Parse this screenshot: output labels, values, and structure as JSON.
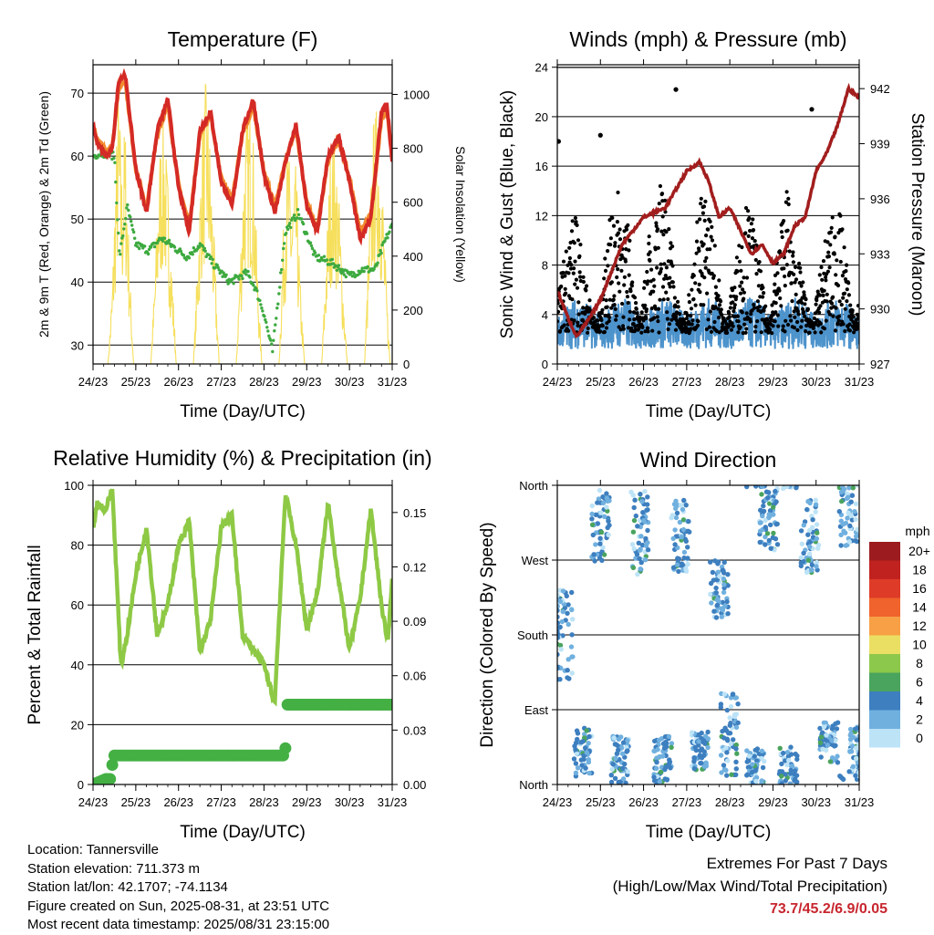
{
  "x_ticks": [
    "24/23",
    "25/23",
    "26/23",
    "27/23",
    "28/23",
    "29/23",
    "30/23",
    "31/23"
  ],
  "colors": {
    "t2m": "#d42a25",
    "t9m": "#f28a2e",
    "dewpoint": "#3daa3f",
    "solar": "#f6df5c",
    "wind": "#4d93cc",
    "gust": "#000000",
    "pressure": "#a21d1d",
    "rh": "#8ec945",
    "precip": "#44b044"
  },
  "chart_data": [
    {
      "type": "line",
      "id": "temperature",
      "title": "Temperature (F)",
      "xlabel": "Time (Day/UTC)",
      "ylabel": "2m & 9m T (Red, Orange) & 2m Td (Green)",
      "ylabel2": "Solar Insolation (Yellow)",
      "x_ticks": [
        "24/23",
        "25/23",
        "26/23",
        "27/23",
        "28/23",
        "29/23",
        "30/23",
        "31/23"
      ],
      "ylim": [
        27,
        74.5
      ],
      "yticks": [
        30,
        40,
        50,
        60,
        70
      ],
      "y2lim": [
        0,
        1110
      ],
      "y2ticks": [
        0,
        200,
        400,
        600,
        800,
        1000
      ],
      "grid": true,
      "series": [
        {
          "key": "t2m",
          "axis": "left",
          "x": [
            0,
            0.1,
            0.3,
            0.45,
            0.6,
            0.75,
            1.0,
            1.25,
            1.5,
            1.75,
            2.0,
            2.25,
            2.5,
            2.75,
            3.0,
            3.25,
            3.5,
            3.75,
            4.0,
            4.25,
            4.5,
            4.75,
            5.0,
            5.25,
            5.5,
            5.75,
            6.0,
            6.25,
            6.5,
            6.75,
            6.88,
            7.0
          ],
          "values": [
            65,
            62,
            60,
            61,
            72,
            73,
            58,
            51,
            64,
            69,
            55,
            48,
            64,
            67,
            56,
            52,
            64,
            69,
            57,
            51,
            59,
            65,
            52,
            48,
            60,
            63,
            56,
            47,
            50,
            67,
            68,
            59
          ]
        },
        {
          "key": "t9m",
          "axis": "left",
          "x": [
            0,
            0.1,
            0.3,
            0.45,
            0.6,
            0.75,
            1.0,
            1.25,
            1.5,
            1.75,
            2.0,
            2.25,
            2.5,
            2.75,
            3.0,
            3.25,
            3.5,
            3.75,
            4.0,
            4.25,
            4.5,
            4.75,
            5.0,
            5.25,
            5.5,
            5.75,
            6.0,
            6.25,
            6.5,
            6.75,
            6.88,
            7.0
          ],
          "values": [
            65,
            62.5,
            61,
            61.5,
            71,
            72,
            58,
            51.5,
            63.5,
            68,
            55.5,
            49,
            63.5,
            66.5,
            56.5,
            53,
            63.5,
            68,
            57.5,
            52,
            59,
            64.5,
            52.5,
            48.5,
            59.5,
            62.5,
            56.5,
            48,
            50.5,
            66,
            67,
            59.5
          ]
        },
        {
          "key": "dewpoint",
          "axis": "left",
          "x": [
            0,
            0.2,
            0.5,
            0.62,
            0.8,
            1.0,
            1.3,
            1.6,
            1.9,
            2.2,
            2.5,
            2.8,
            3.2,
            3.6,
            3.8,
            4.0,
            4.2,
            4.5,
            4.8,
            5.2,
            5.6,
            6.0,
            6.3,
            6.6,
            6.8,
            7.0
          ],
          "values": [
            60,
            60.5,
            60,
            44,
            52,
            46,
            45,
            47,
            45.5,
            44,
            46,
            43,
            40,
            41.5,
            39,
            35,
            29,
            48,
            51,
            44,
            43,
            41,
            42,
            42,
            46,
            49
          ]
        },
        {
          "key": "solar",
          "axis": "right",
          "x": [
            0.35,
            0.45,
            0.55,
            0.6,
            0.68,
            0.75,
            0.85,
            0.95,
            1.35,
            1.45,
            1.55,
            1.65,
            1.75,
            1.85,
            1.95,
            2.35,
            2.45,
            2.55,
            2.65,
            2.72,
            2.85,
            2.95,
            3.35,
            3.45,
            3.55,
            3.65,
            3.75,
            3.85,
            3.95,
            4.35,
            4.45,
            4.55,
            4.65,
            4.75,
            4.85,
            4.95,
            5.35,
            5.45,
            5.55,
            5.65,
            5.75,
            5.85,
            5.95,
            6.35,
            6.45,
            6.55,
            6.65,
            6.75,
            6.85,
            6.95
          ],
          "values": [
            0,
            300,
            850,
            1050,
            700,
            950,
            400,
            0,
            0,
            350,
            800,
            950,
            700,
            350,
            0,
            0,
            420,
            900,
            1080,
            900,
            400,
            0,
            0,
            450,
            850,
            1000,
            850,
            350,
            0,
            0,
            500,
            850,
            650,
            750,
            300,
            0,
            0,
            400,
            800,
            850,
            650,
            300,
            0,
            0,
            450,
            900,
            980,
            800,
            350,
            0
          ]
        }
      ]
    },
    {
      "type": "scatter",
      "id": "winds",
      "title": "Winds (mph) & Pressure (mb)",
      "xlabel": "Time (Day/UTC)",
      "ylabel": "Sonic Wind & Gust (Blue, Black)",
      "ylabel2": "Station Pressure (Maroon)",
      "x_ticks": [
        "24/23",
        "25/23",
        "26/23",
        "27/23",
        "28/23",
        "29/23",
        "30/23",
        "31/23"
      ],
      "ylim": [
        0,
        24.2
      ],
      "yticks": [
        0,
        4,
        8,
        12,
        16,
        20,
        24
      ],
      "y2lim": [
        927,
        943.3
      ],
      "y2ticks": [
        927,
        930,
        933,
        936,
        939,
        942
      ],
      "grid": true,
      "gust_peaks": [
        12,
        9,
        14,
        16,
        15,
        11,
        14,
        12,
        13,
        15,
        10,
        12,
        14
      ],
      "gust_outliers": [
        {
          "x": 0.03,
          "y": 18
        },
        {
          "x": 1.0,
          "y": 18.5
        },
        {
          "x": 2.75,
          "y": 22.2
        },
        {
          "x": 5.9,
          "y": 20.6
        }
      ],
      "series": [
        {
          "key": "pressure",
          "axis": "right",
          "x": [
            0,
            0.25,
            0.45,
            0.75,
            1.0,
            1.5,
            2.0,
            2.5,
            2.75,
            3.0,
            3.3,
            3.5,
            3.75,
            4.0,
            4.5,
            4.75,
            5.0,
            5.25,
            5.5,
            5.75,
            6.0,
            6.25,
            6.5,
            6.75,
            7.0
          ],
          "values": [
            931,
            929.5,
            928.5,
            929.5,
            930.5,
            933.5,
            935,
            935.5,
            936.5,
            937.5,
            938,
            937,
            935,
            935.5,
            933,
            933.5,
            932.5,
            933,
            934.5,
            935,
            937.5,
            938.5,
            940,
            942,
            941.5
          ]
        }
      ]
    },
    {
      "type": "line",
      "id": "humidity",
      "title": "Relative Humidity (%) & Precipitation (in)",
      "xlabel": "Time (Day/UTC)",
      "ylabel": "Percent & Total Rainfall",
      "x_ticks": [
        "24/23",
        "25/23",
        "26/23",
        "27/23",
        "28/23",
        "29/23",
        "30/23",
        "31/23"
      ],
      "ylim": [
        0,
        100
      ],
      "yticks": [
        0,
        20,
        40,
        60,
        80,
        100
      ],
      "y2lim": [
        0,
        0.165
      ],
      "y2ticks": [
        "0.00",
        "0.03",
        "0.06",
        "0.09",
        "0.12",
        "0.15"
      ],
      "grid": true,
      "series": [
        {
          "key": "rh",
          "axis": "left",
          "x": [
            0,
            0.1,
            0.3,
            0.45,
            0.55,
            0.65,
            0.8,
            1.0,
            1.25,
            1.5,
            1.75,
            2.0,
            2.25,
            2.5,
            2.75,
            3.0,
            3.25,
            3.5,
            3.75,
            4.0,
            4.25,
            4.5,
            4.75,
            5.0,
            5.25,
            5.5,
            5.75,
            6.0,
            6.25,
            6.5,
            6.75,
            6.9,
            7.0
          ],
          "values": [
            86,
            94,
            92,
            99,
            70,
            40,
            50,
            70,
            86,
            50,
            60,
            80,
            88,
            44,
            55,
            86,
            90,
            50,
            45,
            40,
            27,
            97,
            80,
            52,
            64,
            94,
            68,
            45,
            62,
            92,
            60,
            47,
            70
          ]
        },
        {
          "key": "precip",
          "axis": "right",
          "x": [
            0,
            0.1,
            0.2,
            0.3,
            0.42,
            0.47,
            4.49,
            4.5,
            4.51,
            4.55,
            7.0
          ],
          "values": [
            0,
            0.001,
            0.002,
            0.003,
            0.003,
            0.016,
            0.016,
            0.02,
            0.033,
            0.044,
            0.044
          ]
        }
      ]
    },
    {
      "type": "scatter",
      "id": "direction",
      "title": "Wind Direction",
      "xlabel": "Time (Day/UTC)",
      "ylabel": "Direction (Colored By Speed)",
      "x_ticks": [
        "24/23",
        "25/23",
        "26/23",
        "27/23",
        "28/23",
        "29/23",
        "30/23",
        "31/23"
      ],
      "yticks": [
        "North",
        "East",
        "South",
        "West",
        "North"
      ],
      "ylim": [
        0,
        360
      ],
      "grid": true,
      "clusters": [
        {
          "x": 0.15,
          "dir": 180,
          "spread": 55
        },
        {
          "x": 0.6,
          "dir": 40,
          "spread": 30
        },
        {
          "x": 1.0,
          "dir": 310,
          "spread": 45
        },
        {
          "x": 1.45,
          "dir": 30,
          "spread": 30
        },
        {
          "x": 1.9,
          "dir": 300,
          "spread": 55
        },
        {
          "x": 2.45,
          "dir": 30,
          "spread": 30
        },
        {
          "x": 2.85,
          "dir": 300,
          "spread": 45
        },
        {
          "x": 3.3,
          "dir": 40,
          "spread": 25
        },
        {
          "x": 3.75,
          "dir": 235,
          "spread": 35
        },
        {
          "x": 4.0,
          "dir": 60,
          "spread": 50
        },
        {
          "x": 4.6,
          "dir": 20,
          "spread": 25
        },
        {
          "x": 4.9,
          "dir": 320,
          "spread": 40
        },
        {
          "x": 5.35,
          "dir": 20,
          "spread": 25
        },
        {
          "x": 5.85,
          "dir": 300,
          "spread": 45
        },
        {
          "x": 6.3,
          "dir": 50,
          "spread": 25
        },
        {
          "x": 6.75,
          "dir": 330,
          "spread": 45
        },
        {
          "x": 6.95,
          "dir": 40,
          "spread": 30
        }
      ],
      "colorbar": {
        "title": "mph",
        "labels": [
          "20+",
          "18",
          "16",
          "14",
          "12",
          "10",
          "8",
          "6",
          "4",
          "2",
          "0"
        ],
        "colors": [
          "#9b1b1e",
          "#c0221f",
          "#de3b28",
          "#f0632c",
          "#f7a046",
          "#ebdf63",
          "#8cc84b",
          "#4aa45e",
          "#3d7fbf",
          "#70b0df",
          "#bde3f7"
        ]
      }
    }
  ],
  "info": {
    "location": "Location: Tannersville",
    "elevation": "Station elevation: 711.373 m",
    "latlon": "Station lat/lon: 42.1707; -74.1134",
    "created": "Figure created on Sun, 2025-08-31, at 23:51 UTC",
    "recent": "Most recent data timestamp: 2025/08/31 23:15:00"
  },
  "extremes": {
    "title": "Extremes For Past 7 Days",
    "subtitle": "(High/Low/Max Wind/Total Precipitation)",
    "values": "73.7/45.2/6.9/0.05"
  }
}
